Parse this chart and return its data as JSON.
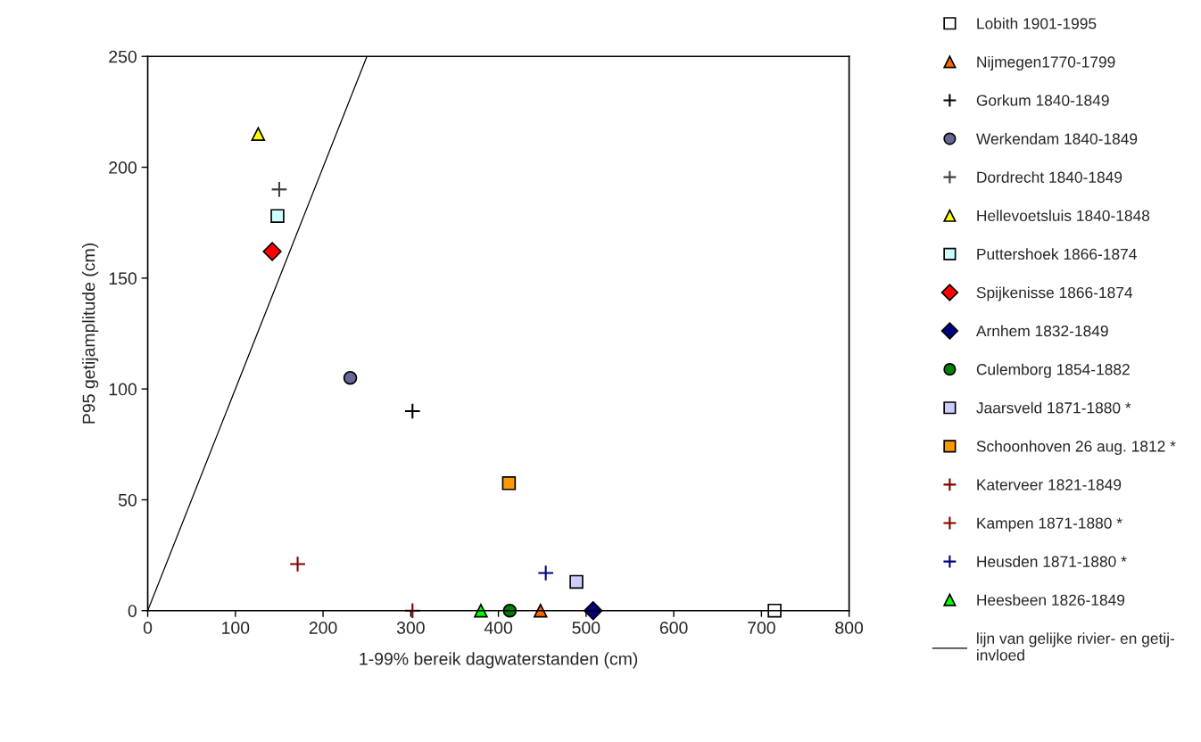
{
  "chart_data": {
    "type": "scatter",
    "xlabel": "1-99% bereik dagwaterstanden (cm)",
    "ylabel": "P95 getijamplitude (cm)",
    "xlim": [
      0,
      800
    ],
    "ylim": [
      0,
      250
    ],
    "xticks": [
      0,
      100,
      200,
      300,
      400,
      500,
      600,
      700,
      800
    ],
    "yticks": [
      0,
      50,
      100,
      150,
      200,
      250
    ],
    "grid": false,
    "legend": "right",
    "series": [
      {
        "name": "Lobith 1901-1995",
        "marker": "square",
        "color": "#ffffff",
        "x": [
          715
        ],
        "values": [
          0
        ]
      },
      {
        "name": "Nijmegen1770-1799",
        "marker": "triangle",
        "color": "#ff6600",
        "x": [
          448
        ],
        "values": [
          0
        ]
      },
      {
        "name": "Gorkum 1840-1849",
        "marker": "cross",
        "color": "#000000",
        "x": [
          302
        ],
        "values": [
          90
        ]
      },
      {
        "name": "Werkendam 1840-1849",
        "marker": "circle",
        "color": "#666699",
        "x": [
          231
        ],
        "values": [
          105
        ]
      },
      {
        "name": "Dordrecht 1840-1849",
        "marker": "cross",
        "color": "#404040",
        "x": [
          150
        ],
        "values": [
          190
        ]
      },
      {
        "name": "Hellevoetsluis 1840-1848",
        "marker": "triangle",
        "color": "#ffff00",
        "x": [
          126
        ],
        "values": [
          215
        ]
      },
      {
        "name": "Puttershoek 1866-1874",
        "marker": "square",
        "color": "#ccffff",
        "x": [
          148
        ],
        "values": [
          178
        ]
      },
      {
        "name": "Spijkenisse 1866-1874",
        "marker": "diamond",
        "color": "#ff0000",
        "x": [
          142
        ],
        "values": [
          162
        ]
      },
      {
        "name": "Arnhem 1832-1849",
        "marker": "diamond",
        "color": "#000080",
        "x": [
          508
        ],
        "values": [
          0
        ]
      },
      {
        "name": "Culemborg 1854-1882",
        "marker": "circle",
        "color": "#008000",
        "x": [
          413
        ],
        "values": [
          0
        ]
      },
      {
        "name": "Jaarsveld 1871-1880 *",
        "marker": "square",
        "color": "#ccccff",
        "x": [
          489
        ],
        "values": [
          13
        ]
      },
      {
        "name": "Schoonhoven 26 aug. 1812 *",
        "marker": "square",
        "color": "#ff9900",
        "x": [
          412
        ],
        "values": [
          57.5
        ]
      },
      {
        "name": "Katerveer 1821-1849",
        "marker": "cross",
        "color": "#800000",
        "x": [
          302
        ],
        "values": [
          0
        ]
      },
      {
        "name": "Kampen 1871-1880 *",
        "marker": "cross",
        "color": "#800000",
        "x": [
          171
        ],
        "values": [
          21
        ]
      },
      {
        "name": "Heusden 1871-1880 *",
        "marker": "cross",
        "color": "#000080",
        "x": [
          454
        ],
        "values": [
          17
        ]
      },
      {
        "name": "Heesbeen 1826-1849",
        "marker": "triangle",
        "color": "#00ff00",
        "x": [
          380
        ],
        "values": [
          0
        ]
      },
      {
        "name": "lijn van gelijke rivier- en getij-\ninvloed",
        "type": "line",
        "marker": "none",
        "line_style": "solid",
        "color": "#000000",
        "x": [
          0,
          250
        ],
        "values": [
          0,
          250
        ]
      }
    ]
  }
}
